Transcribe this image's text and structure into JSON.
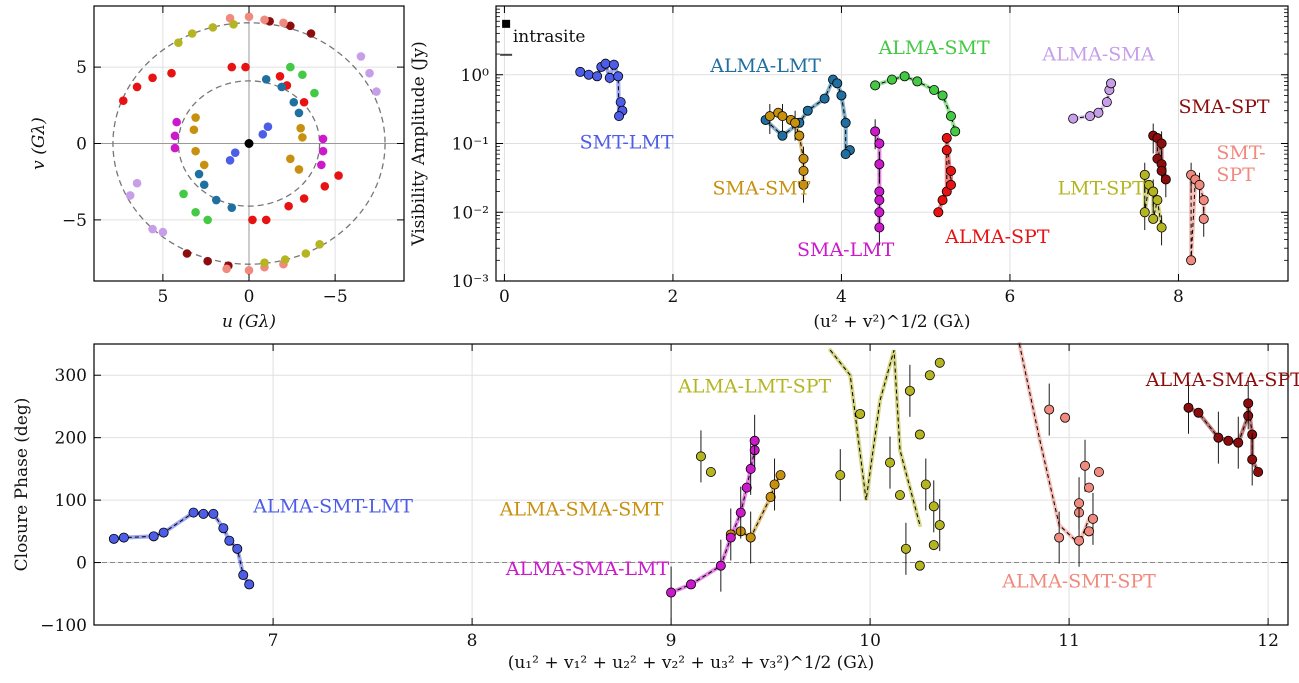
{
  "colors": {
    "SMT-LMT": "#4d5de8",
    "ALMA-LMT": "#1f6fa0",
    "ALMA-SMT": "#43c943",
    "ALMA-SMA": "#c79fe8",
    "SMA-SPT": "#8c0d0d",
    "SMA-SMT": "#c8900f",
    "LMT-SPT": "#b5b521",
    "SMT-SPT": "#f08a7e",
    "SMA-LMT": "#cc19cc",
    "ALMA-SPT": "#e81212",
    "intrasite": "#000000",
    "ALMA-SMT-LMT": "#4d5de8",
    "ALMA-LMT-SPT": "#b5b521",
    "ALMA-SMA-SMT": "#c8900f",
    "ALMA-SMA-LMT": "#cc19cc",
    "ALMA-SMT-SPT": "#f08a7e",
    "ALMA-SMA-SPT": "#8c0d0d"
  },
  "chart_data": [
    {
      "type": "scatter",
      "xlabel": "u (Gλ)",
      "ylabel": "v (Gλ)",
      "xlim": [
        9,
        -9
      ],
      "ylim": [
        -9,
        9
      ],
      "xticks": [
        "5",
        "0",
        "−5"
      ],
      "yticks": [
        "5",
        "0",
        "−5"
      ],
      "guide_circles_radius": [
        4.1,
        7.9
      ],
      "series": [
        {
          "name": "ALMA-SPT",
          "points": [
            [
              7.3,
              2.8
            ],
            [
              6.5,
              3.7
            ],
            [
              5.6,
              4.3
            ],
            [
              4.5,
              4.6
            ],
            [
              -1.8,
              4.4
            ],
            [
              -2.2,
              3.8
            ],
            [
              -3.2,
              2.7
            ],
            [
              -2.3,
              -4.1
            ],
            [
              -3.2,
              -3.6
            ],
            [
              -4.4,
              -2.8
            ],
            [
              -5.2,
              -2.1
            ],
            [
              1.0,
              5.0
            ],
            [
              0.2,
              5.0
            ],
            [
              -1.0,
              -5.0
            ],
            [
              -0.2,
              -5.0
            ]
          ]
        },
        {
          "name": "SMA-SPT",
          "points": [
            [
              -1.2,
              8.0
            ],
            [
              -2.4,
              7.7
            ],
            [
              -3.6,
              7.2
            ],
            [
              1.2,
              -8.0
            ],
            [
              2.4,
              -7.7
            ],
            [
              3.6,
              -7.2
            ]
          ]
        },
        {
          "name": "SMT-SPT",
          "points": [
            [
              1.1,
              8.2
            ],
            [
              0,
              8.3
            ],
            [
              -0.9,
              8.1
            ],
            [
              -2.0,
              7.9
            ],
            [
              1.3,
              -8.2
            ],
            [
              0,
              -8.3
            ],
            [
              -0.9,
              -8.1
            ],
            [
              -2.0,
              -7.9
            ]
          ]
        },
        {
          "name": "LMT-SPT",
          "points": [
            [
              4.1,
              6.6
            ],
            [
              3.3,
              7.2
            ],
            [
              2.1,
              7.6
            ],
            [
              0.9,
              7.8
            ],
            [
              -4.1,
              -6.6
            ],
            [
              -3.3,
              -7.2
            ],
            [
              -2.1,
              -7.6
            ],
            [
              -0.9,
              -7.8
            ]
          ]
        },
        {
          "name": "ALMA-SMA",
          "points": [
            [
              -6.5,
              5.7
            ],
            [
              -7.0,
              4.6
            ],
            [
              -7.4,
              3.4
            ],
            [
              6.5,
              -2.6
            ],
            [
              6.9,
              -3.4
            ],
            [
              5.6,
              -5.6
            ],
            [
              5.0,
              -5.8
            ]
          ]
        },
        {
          "name": "ALMA-SMT",
          "points": [
            [
              -2.4,
              5.0
            ],
            [
              -3.1,
              4.5
            ],
            [
              -3.8,
              3.3
            ],
            [
              2.4,
              -5.0
            ],
            [
              3.1,
              -4.5
            ],
            [
              3.8,
              -3.3
            ]
          ]
        },
        {
          "name": "ALMA-LMT",
          "points": [
            [
              -1.0,
              4.2
            ],
            [
              -1.9,
              3.7
            ],
            [
              -2.6,
              2.7
            ],
            [
              -2.9,
              2.0
            ],
            [
              1.0,
              -4.2
            ],
            [
              1.9,
              -3.7
            ],
            [
              2.6,
              -2.7
            ],
            [
              2.9,
              -2.0
            ]
          ]
        },
        {
          "name": "SMA-LMT",
          "points": [
            [
              4.3,
              -0.3
            ],
            [
              4.3,
              0.5
            ],
            [
              4.2,
              1.4
            ],
            [
              -4.3,
              0.3
            ],
            [
              -4.3,
              -0.5
            ],
            [
              -4.2,
              -1.4
            ]
          ]
        },
        {
          "name": "SMA-SMT",
          "points": [
            [
              3.1,
              1.7
            ],
            [
              3.2,
              0.9
            ],
            [
              -2.4,
              -1.0
            ],
            [
              -2.9,
              -1.7
            ],
            [
              2.6,
              -1.4
            ],
            [
              3.1,
              -0.5
            ],
            [
              -3.1,
              0.4
            ],
            [
              -3.0,
              1.0
            ]
          ]
        },
        {
          "name": "SMT-LMT",
          "points": [
            [
              -0.8,
              0.6
            ],
            [
              -1.1,
              1.1
            ],
            [
              0.8,
              -0.6
            ],
            [
              1.1,
              -1.1
            ]
          ]
        },
        {
          "name": "intrasite",
          "points": [
            [
              0,
              0
            ]
          ]
        }
      ]
    },
    {
      "type": "scatter",
      "xlabel": "(u² + v²)^1/2 (Gλ)",
      "ylabel": "Visibility Amplitude (Jy)",
      "xlim": [
        -0.1,
        9.3
      ],
      "ylim": [
        0.001,
        10
      ],
      "yscale": "log",
      "xticks": [
        "0",
        "2",
        "4",
        "6",
        "8"
      ],
      "yticks": [
        "10⁻³",
        "10⁻²",
        "10⁻¹",
        "10⁰"
      ],
      "series": [
        {
          "name": "intrasite",
          "label": "intrasite",
          "points": [
            [
              0.02,
              5.5
            ]
          ]
        },
        {
          "name": "SMT-LMT",
          "label": "SMT-LMT",
          "points": [
            [
              0.9,
              1.1
            ],
            [
              1.0,
              1.0
            ],
            [
              1.1,
              0.95
            ],
            [
              1.15,
              1.3
            ],
            [
              1.2,
              1.45
            ],
            [
              1.3,
              1.4
            ],
            [
              1.25,
              0.9
            ],
            [
              1.35,
              0.95
            ],
            [
              1.38,
              0.4
            ],
            [
              1.4,
              0.3
            ],
            [
              1.36,
              0.25
            ]
          ]
        },
        {
          "name": "ALMA-LMT",
          "label": "ALMA-LMT",
          "points": [
            [
              3.1,
              0.22
            ],
            [
              3.3,
              0.13
            ],
            [
              3.5,
              0.2
            ],
            [
              3.6,
              0.3
            ],
            [
              3.8,
              0.45
            ],
            [
              3.9,
              0.85
            ],
            [
              3.95,
              0.75
            ],
            [
              4.0,
              0.5
            ],
            [
              4.05,
              0.2
            ],
            [
              4.1,
              0.08
            ],
            [
              4.05,
              0.07
            ]
          ]
        },
        {
          "name": "SMA-SMT",
          "label": "SMA-SMT",
          "points": [
            [
              3.15,
              0.25
            ],
            [
              3.25,
              0.28
            ],
            [
              3.3,
              0.25
            ],
            [
              3.4,
              0.22
            ],
            [
              3.45,
              0.2
            ],
            [
              3.5,
              0.13
            ],
            [
              3.55,
              0.06
            ],
            [
              3.55,
              0.04
            ],
            [
              3.55,
              0.025
            ]
          ]
        },
        {
          "name": "ALMA-SMT",
          "label": "ALMA-SMT",
          "points": [
            [
              4.4,
              0.7
            ],
            [
              4.6,
              0.85
            ],
            [
              4.75,
              0.95
            ],
            [
              4.9,
              0.8
            ],
            [
              5.1,
              0.6
            ],
            [
              5.2,
              0.5
            ],
            [
              5.3,
              0.25
            ],
            [
              5.35,
              0.15
            ]
          ]
        },
        {
          "name": "SMA-LMT",
          "label": "SMA-LMT",
          "points": [
            [
              4.4,
              0.15
            ],
            [
              4.45,
              0.1
            ],
            [
              4.45,
              0.05
            ],
            [
              4.45,
              0.02
            ],
            [
              4.45,
              0.015
            ],
            [
              4.45,
              0.01
            ],
            [
              4.45,
              0.006
            ]
          ]
        },
        {
          "name": "ALMA-SPT",
          "label": "ALMA-SPT",
          "points": [
            [
              5.15,
              0.01
            ],
            [
              5.2,
              0.015
            ],
            [
              5.25,
              0.02
            ],
            [
              5.3,
              0.025
            ],
            [
              5.3,
              0.04
            ],
            [
              5.25,
              0.08
            ],
            [
              5.25,
              0.12
            ]
          ]
        },
        {
          "name": "ALMA-SMA",
          "label": "ALMA-SMA",
          "points": [
            [
              6.75,
              0.23
            ],
            [
              6.95,
              0.25
            ],
            [
              7.05,
              0.28
            ],
            [
              7.15,
              0.4
            ],
            [
              7.18,
              0.6
            ],
            [
              7.2,
              0.75
            ]
          ]
        },
        {
          "name": "SMA-SPT",
          "label": "SMA-SPT",
          "points": [
            [
              7.7,
              0.13
            ],
            [
              7.75,
              0.12
            ],
            [
              7.8,
              0.1
            ],
            [
              7.75,
              0.06
            ],
            [
              7.8,
              0.05
            ],
            [
              7.8,
              0.04
            ],
            [
              7.85,
              0.03
            ]
          ]
        },
        {
          "name": "LMT-SPT",
          "label": "LMT-SPT",
          "points": [
            [
              7.6,
              0.035
            ],
            [
              7.65,
              0.025
            ],
            [
              7.7,
              0.02
            ],
            [
              7.75,
              0.015
            ],
            [
              7.6,
              0.01
            ],
            [
              7.7,
              0.008
            ],
            [
              7.8,
              0.006
            ]
          ]
        },
        {
          "name": "SMT-SPT",
          "label": "SMT-SPT",
          "points": [
            [
              8.15,
              0.035
            ],
            [
              8.2,
              0.03
            ],
            [
              8.25,
              0.025
            ],
            [
              8.3,
              0.015
            ],
            [
              8.3,
              0.008
            ],
            [
              8.15,
              0.002
            ]
          ]
        }
      ]
    },
    {
      "type": "scatter",
      "xlabel": "(u₁² + v₁² + u₂² + v₂² + u₃² + v₃²)^1/2 (Gλ)",
      "ylabel": "Closure Phase (deg)",
      "xlim": [
        6.1,
        12.1
      ],
      "ylim": [
        -100,
        350
      ],
      "xticks": [
        "7",
        "8",
        "9",
        "10",
        "11",
        "12"
      ],
      "yticks": [
        "−100",
        "0",
        "100",
        "200",
        "300"
      ],
      "series": [
        {
          "name": "ALMA-SMT-LMT",
          "label": "ALMA-SMT-LMT",
          "points": [
            [
              6.2,
              38
            ],
            [
              6.25,
              40
            ],
            [
              6.4,
              42
            ],
            [
              6.45,
              48
            ],
            [
              6.6,
              80
            ],
            [
              6.65,
              78
            ],
            [
              6.7,
              78
            ],
            [
              6.75,
              55
            ],
            [
              6.78,
              35
            ],
            [
              6.82,
              22
            ],
            [
              6.85,
              -20
            ],
            [
              6.88,
              -35
            ]
          ]
        },
        {
          "name": "ALMA-LMT-SPT",
          "label": "ALMA-LMT-SPT",
          "points": [
            [
              9.15,
              170
            ],
            [
              9.2,
              145
            ],
            [
              9.85,
              140
            ],
            [
              9.95,
              238
            ],
            [
              10.1,
              160
            ],
            [
              10.15,
              108
            ],
            [
              10.2,
              275
            ],
            [
              10.25,
              205
            ],
            [
              10.28,
              125
            ],
            [
              10.3,
              300
            ],
            [
              10.32,
              90
            ],
            [
              10.32,
              28
            ],
            [
              10.35,
              60
            ],
            [
              10.35,
              320
            ],
            [
              10.18,
              22
            ],
            [
              10.25,
              -5
            ]
          ]
        },
        {
          "name": "ALMA-SMA-SMT",
          "label": "ALMA-SMA-SMT",
          "points": [
            [
              9.3,
              45
            ],
            [
              9.35,
              50
            ],
            [
              9.4,
              40
            ],
            [
              9.5,
              105
            ],
            [
              9.52,
              125
            ],
            [
              9.55,
              140
            ]
          ]
        },
        {
          "name": "ALMA-SMA-LMT",
          "label": "ALMA-SMA-LMT",
          "points": [
            [
              9.0,
              -48
            ],
            [
              9.1,
              -35
            ],
            [
              9.25,
              -5
            ],
            [
              9.3,
              40
            ],
            [
              9.35,
              80
            ],
            [
              9.38,
              120
            ],
            [
              9.4,
              150
            ],
            [
              9.42,
              180
            ],
            [
              9.42,
              195
            ]
          ]
        },
        {
          "name": "ALMA-SMT-SPT",
          "label": "ALMA-SMT-SPT",
          "points": [
            [
              10.9,
              245
            ],
            [
              10.98,
              232
            ],
            [
              10.95,
              40
            ],
            [
              11.05,
              80
            ],
            [
              11.08,
              155
            ],
            [
              11.1,
              120
            ],
            [
              11.12,
              70
            ],
            [
              11.1,
              50
            ],
            [
              11.05,
              35
            ],
            [
              11.15,
              145
            ],
            [
              11.05,
              95
            ]
          ]
        },
        {
          "name": "ALMA-SMA-SPT",
          "label": "ALMA-SMA-SPT",
          "points": [
            [
              11.6,
              248
            ],
            [
              11.65,
              240
            ],
            [
              11.75,
              200
            ],
            [
              11.8,
              195
            ],
            [
              11.85,
              192
            ],
            [
              11.9,
              235
            ],
            [
              11.9,
              255
            ],
            [
              11.92,
              205
            ],
            [
              11.92,
              165
            ],
            [
              11.95,
              145
            ]
          ]
        }
      ]
    }
  ]
}
